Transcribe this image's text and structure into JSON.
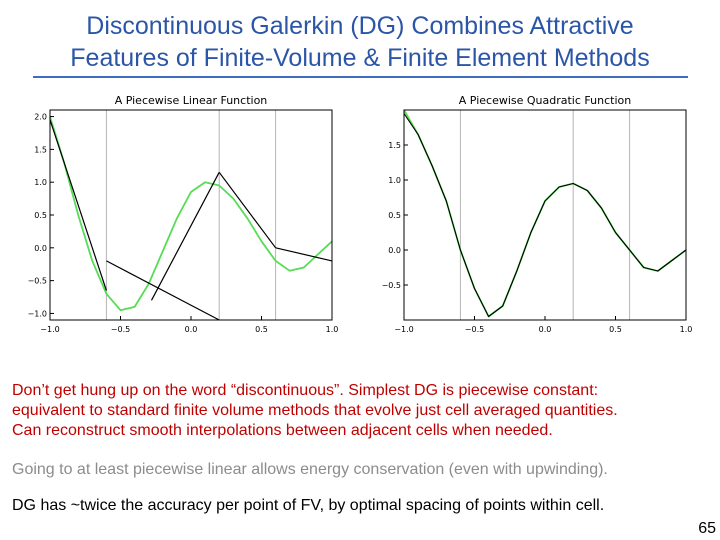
{
  "slide": {
    "title_line1": "Discontinuous Galerkin (DG) Combines Attractive",
    "title_line2": "Features of Finite-Volume & Finite Element Methods",
    "title_color": "#2b56a8",
    "text_red_color": "#c00000",
    "text_gray_color": "#8c8c8c",
    "body_red": [
      "Don’t get hung up on the word “discontinuous”.  Simplest DG is piecewise constant:",
      "equivalent to standard finite volume methods that evolve just cell averaged quantities.",
      "Can reconstruct smooth interpolations between adjacent cells when needed."
    ],
    "body_gray": "Going to at least piecewise linear allows energy conservation (even with upwinding).",
    "body_black": "DG has ~twice the accuracy per point of FV, by optimal spacing of points within cell.",
    "slide_number": "65"
  },
  "chart_data": [
    {
      "type": "line",
      "title": "A Piecewise Linear Function",
      "xlim": [
        -1.0,
        1.0
      ],
      "ylim": [
        -1.1,
        2.1
      ],
      "xticks": [
        -1.0,
        -0.5,
        0.0,
        0.5,
        1.0
      ],
      "xtick_labels": [
        "−1.0",
        "−0.5",
        "0.0",
        "0.5",
        "1.0"
      ],
      "yticks": [
        -1.0,
        -0.5,
        0.0,
        0.5,
        1.0,
        1.5,
        2.0
      ],
      "ytick_labels": [
        "−1.0",
        "−0.5",
        "0.0",
        "0.5",
        "1.0",
        "1.5",
        "2.0"
      ],
      "cell_boundaries": [
        -0.6,
        0.2,
        0.6
      ],
      "grid": false,
      "colors": {
        "smooth": "#55dd55",
        "piecewise": "#000000",
        "boundary": "#b4b4b4"
      },
      "series": [
        {
          "style": "smooth",
          "x": [
            -1.0,
            -0.9,
            -0.8,
            -0.7,
            -0.6,
            -0.5,
            -0.4,
            -0.3,
            -0.2,
            -0.1,
            0.0,
            0.1,
            0.2,
            0.3,
            0.4,
            0.5,
            0.6,
            0.7,
            0.8,
            0.9,
            1.0
          ],
          "y": [
            2.0,
            1.3,
            0.5,
            -0.2,
            -0.7,
            -0.95,
            -0.9,
            -0.55,
            -0.05,
            0.45,
            0.85,
            1.0,
            0.95,
            0.75,
            0.45,
            0.1,
            -0.2,
            -0.35,
            -0.3,
            -0.1,
            0.1
          ]
        },
        {
          "style": "piecewise",
          "segments": [
            {
              "x": [
                -1.0,
                -0.6
              ],
              "y": [
                1.95,
                -0.65
              ]
            },
            {
              "x": [
                -0.6,
                0.2
              ],
              "y": [
                -0.2,
                -1.1
              ]
            },
            {
              "x": [
                -0.28,
                0.2
              ],
              "y": [
                -0.8,
                1.15
              ]
            },
            {
              "x": [
                0.2,
                0.6
              ],
              "y": [
                1.15,
                0.0
              ]
            },
            {
              "x": [
                0.6,
                1.0
              ],
              "y": [
                0.0,
                -0.2
              ]
            }
          ]
        }
      ]
    },
    {
      "type": "line",
      "title": "A Piecewise Quadratic Function",
      "xlim": [
        -1.0,
        1.0
      ],
      "ylim": [
        -1.0,
        2.0
      ],
      "xticks": [
        -1.0,
        -0.5,
        0.0,
        0.5,
        1.0
      ],
      "xtick_labels": [
        "−1.0",
        "−0.5",
        "0.0",
        "0.5",
        "1.0"
      ],
      "yticks": [
        -0.5,
        0.0,
        0.5,
        1.0,
        1.5
      ],
      "ytick_labels": [
        "−0.5",
        "0.0",
        "0.5",
        "1.0",
        "1.5"
      ],
      "cell_boundaries": [
        -0.6,
        0.2,
        0.6
      ],
      "grid": false,
      "colors": {
        "smooth": "#55dd55",
        "piecewise": "#000000",
        "boundary": "#b4b4b4"
      },
      "series": [
        {
          "style": "smooth",
          "x": [
            -1.0,
            -0.9,
            -0.8,
            -0.7,
            -0.6,
            -0.5,
            -0.4,
            -0.3,
            -0.2,
            -0.1,
            0.0,
            0.1,
            0.2,
            0.3,
            0.4,
            0.5,
            0.6,
            0.7,
            0.8,
            0.9,
            1.0
          ],
          "y": [
            2.0,
            1.65,
            1.2,
            0.7,
            0.0,
            -0.55,
            -0.95,
            -0.8,
            -0.3,
            0.25,
            0.7,
            0.9,
            0.95,
            0.85,
            0.6,
            0.25,
            0.0,
            -0.25,
            -0.3,
            -0.15,
            0.0
          ]
        },
        {
          "style": "piecewise",
          "x": [
            -1.0,
            -0.9,
            -0.8,
            -0.7,
            -0.6,
            -0.5,
            -0.4,
            -0.3,
            -0.2,
            -0.1,
            0.0,
            0.1,
            0.2,
            0.3,
            0.4,
            0.5,
            0.6,
            0.7,
            0.8,
            0.9,
            1.0
          ],
          "y": [
            1.95,
            1.65,
            1.2,
            0.7,
            0.0,
            -0.55,
            -0.95,
            -0.8,
            -0.3,
            0.25,
            0.7,
            0.9,
            0.95,
            0.85,
            0.6,
            0.25,
            0.0,
            -0.25,
            -0.3,
            -0.15,
            0.0
          ]
        }
      ]
    }
  ]
}
